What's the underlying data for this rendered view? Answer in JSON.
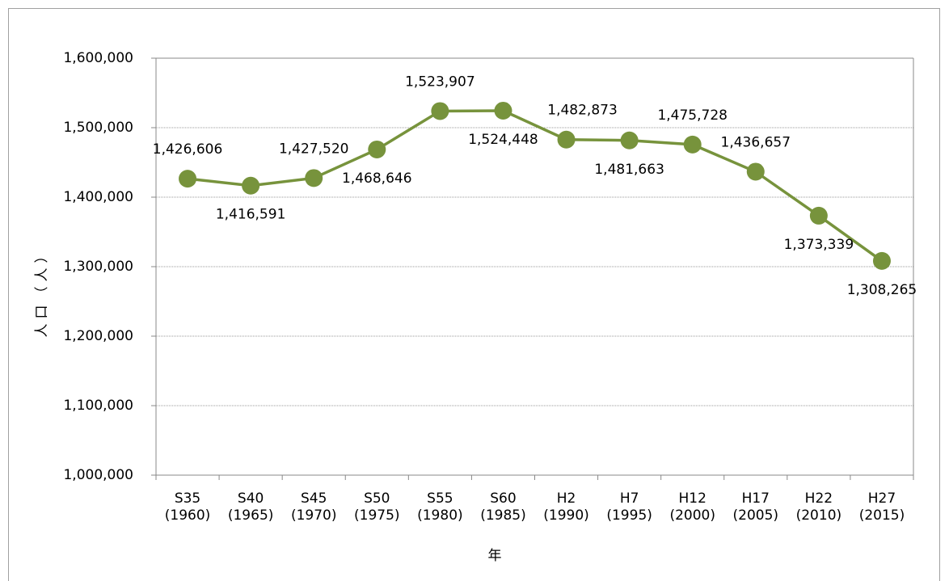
{
  "chart_data": {
    "type": "line",
    "y_axis_label": "人口（人）",
    "x_axis_label": "年",
    "categories": [
      [
        "S35",
        "(1960)"
      ],
      [
        "S40",
        "(1965)"
      ],
      [
        "S45",
        "(1970)"
      ],
      [
        "S50",
        "(1975)"
      ],
      [
        "S55",
        "(1980)"
      ],
      [
        "S60",
        "(1985)"
      ],
      [
        "H2",
        "(1990)"
      ],
      [
        "H7",
        "(1995)"
      ],
      [
        "H12",
        "(2000)"
      ],
      [
        "H17",
        "(2005)"
      ],
      [
        "H22",
        "(2010)"
      ],
      [
        "H27",
        "(2015)"
      ]
    ],
    "series": [
      {
        "name": "人口",
        "color": "#77933c",
        "values": [
          1426606,
          1416591,
          1427520,
          1468646,
          1523907,
          1524448,
          1482873,
          1481663,
          1475728,
          1436657,
          1373339,
          1308265
        ],
        "value_labels": [
          "1,426,606",
          "1,416,591",
          "1,427,520",
          "1,468,646",
          "1,523,907",
          "1,524,448",
          "1,482,873",
          "1,481,663",
          "1,475,728",
          "1,436,657",
          "1,373,339",
          "1,308,265"
        ]
      }
    ],
    "ylim": [
      1000000,
      1600000
    ],
    "yticks": [
      {
        "value": 1000000,
        "label": "1,000,000"
      },
      {
        "value": 1100000,
        "label": "1,100,000"
      },
      {
        "value": 1200000,
        "label": "1,200,000"
      },
      {
        "value": 1300000,
        "label": "1,300,000"
      },
      {
        "value": 1400000,
        "label": "1,400,000"
      },
      {
        "value": 1500000,
        "label": "1,500,000"
      },
      {
        "value": 1600000,
        "label": "1,600,000"
      }
    ],
    "grid": true
  }
}
